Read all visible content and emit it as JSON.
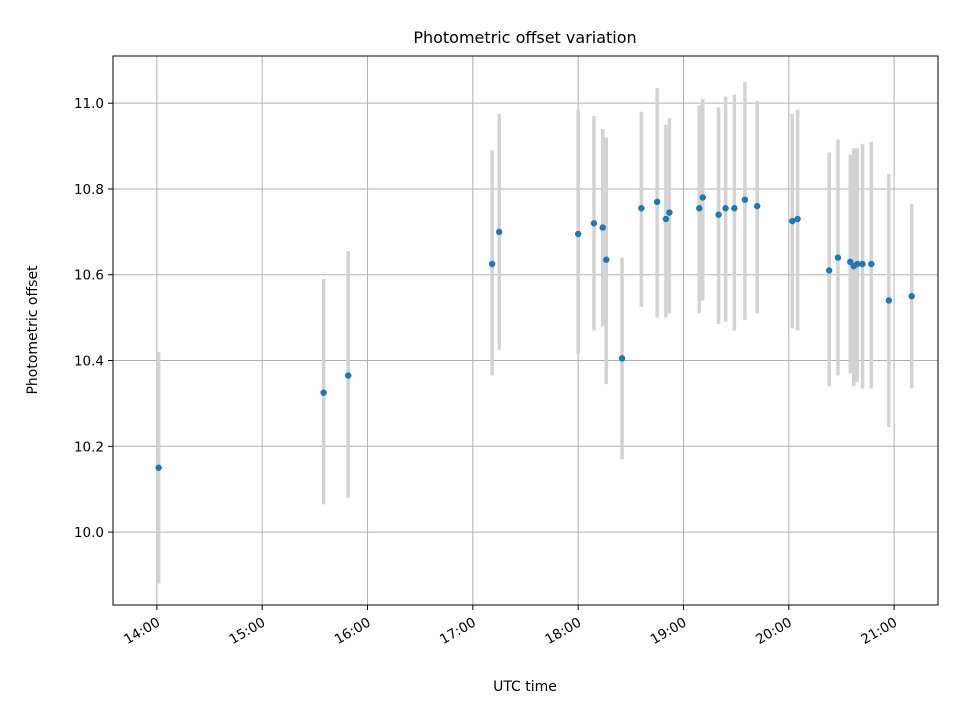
{
  "chart_data": {
    "type": "scatter",
    "title": "Photometric offset variation",
    "xlabel": "UTC time",
    "ylabel": "Photometric offset",
    "x_ticks": [
      "14:00",
      "15:00",
      "16:00",
      "17:00",
      "18:00",
      "19:00",
      "20:00",
      "21:00"
    ],
    "y_ticks": [
      "10.0",
      "10.2",
      "10.4",
      "10.6",
      "10.8",
      "11.0"
    ],
    "xlim": [
      "13:35",
      "21:25"
    ],
    "ylim": [
      9.83,
      11.11
    ],
    "grid": true,
    "marker_color": "#1f77b4",
    "errorbar_color": "#d3d3d3",
    "series": [
      {
        "x": [
          "14:01",
          "15:35",
          "15:49",
          "17:11",
          "17:15",
          "18:00",
          "18:09",
          "18:14",
          "18:16",
          "18:25",
          "18:36",
          "18:45",
          "18:50",
          "18:52",
          "19:09",
          "19:11",
          "19:20",
          "19:24",
          "19:29",
          "19:35",
          "19:42",
          "20:02",
          "20:05",
          "20:23",
          "20:28",
          "20:35",
          "20:37",
          "20:39",
          "20:42",
          "20:47",
          "20:57",
          "21:10"
        ],
        "y": [
          10.15,
          10.325,
          10.365,
          10.625,
          10.7,
          10.695,
          10.72,
          10.71,
          10.635,
          10.405,
          10.755,
          10.77,
          10.73,
          10.745,
          10.755,
          10.78,
          10.74,
          10.755,
          10.755,
          10.775,
          10.76,
          10.725,
          10.73,
          10.61,
          10.64,
          10.63,
          10.62,
          10.625,
          10.625,
          10.625,
          10.54,
          10.55
        ],
        "lo": [
          9.88,
          10.065,
          10.08,
          10.365,
          10.425,
          10.415,
          10.47,
          10.48,
          10.345,
          10.17,
          10.525,
          10.5,
          10.5,
          10.51,
          10.51,
          10.54,
          10.485,
          10.49,
          10.47,
          10.495,
          10.51,
          10.475,
          10.47,
          10.34,
          10.365,
          10.37,
          10.34,
          10.35,
          10.335,
          10.335,
          10.245,
          10.335
        ],
        "hi": [
          10.42,
          10.59,
          10.655,
          10.89,
          10.975,
          10.985,
          10.97,
          10.94,
          10.92,
          10.64,
          10.98,
          11.035,
          10.95,
          10.965,
          10.995,
          11.01,
          10.99,
          11.015,
          11.02,
          11.05,
          11.005,
          10.975,
          10.985,
          10.885,
          10.915,
          10.88,
          10.895,
          10.895,
          10.905,
          10.91,
          10.835,
          10.765
        ]
      }
    ]
  }
}
